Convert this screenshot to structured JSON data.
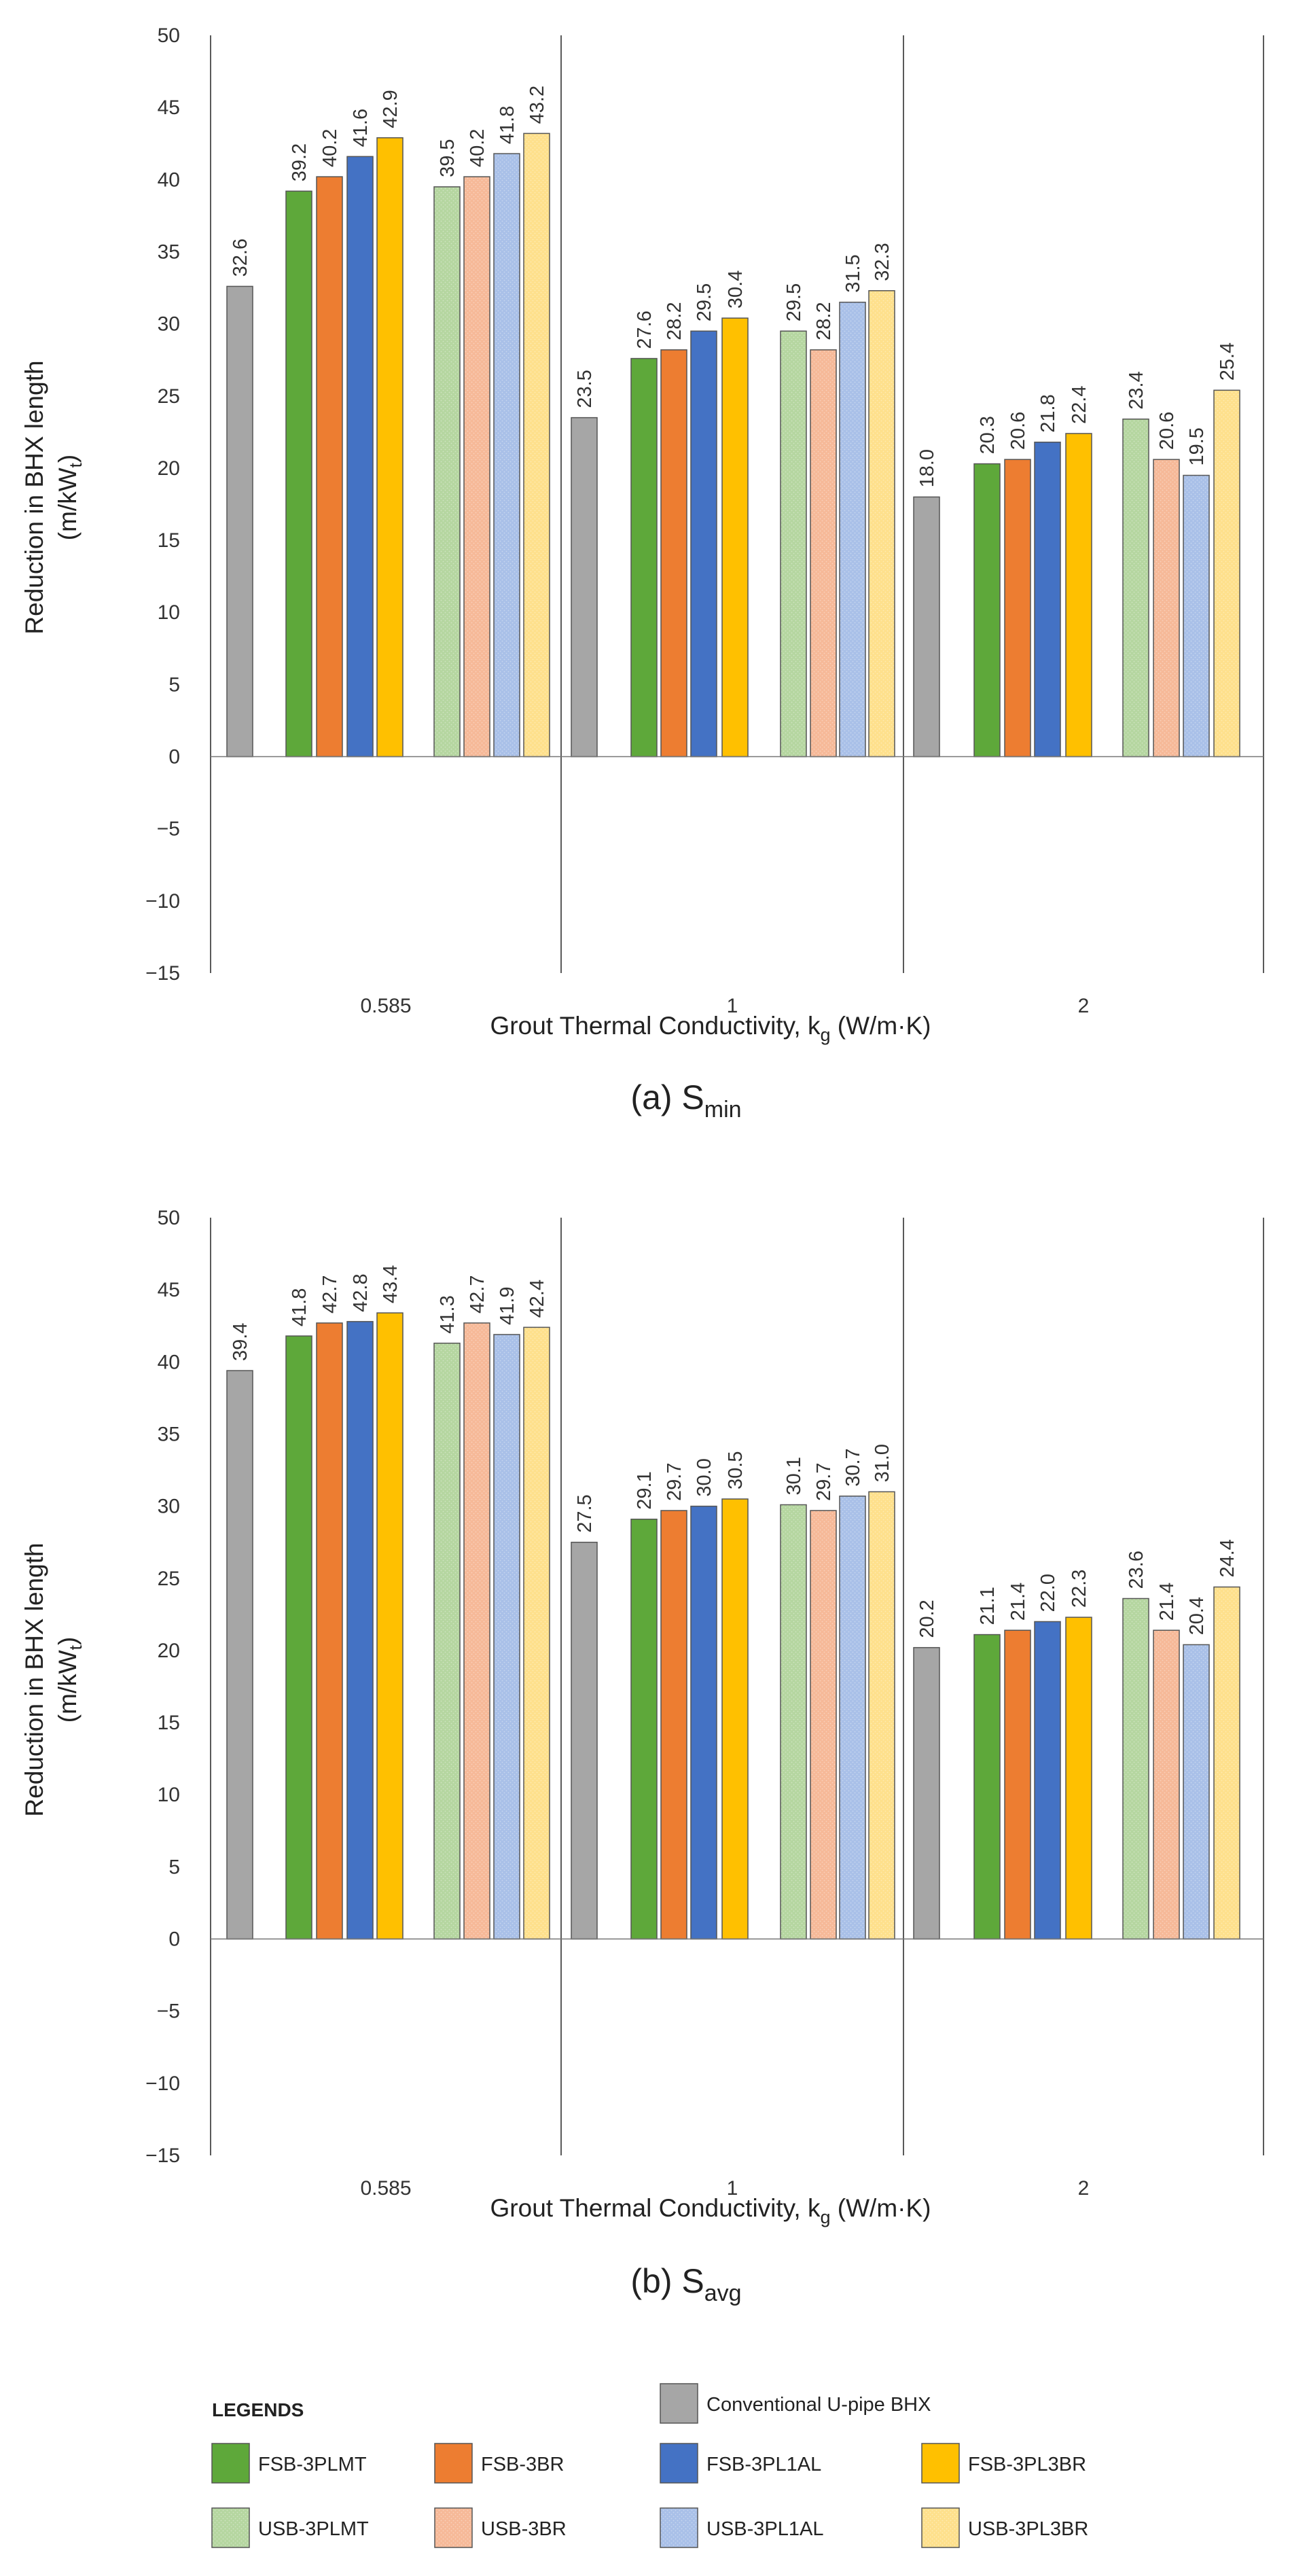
{
  "chart_data": [
    {
      "type": "bar",
      "caption_main": "(a) S",
      "caption_sub": "min",
      "ylabel_line1": "Reduction in BHX length",
      "ylabel_line2_main": "(m/kW",
      "ylabel_line2_sub": "t",
      "ylabel_line2_end": ")",
      "xlabel_main": "Grout Thermal Conductivity,  k",
      "xlabel_sub": "g",
      "xlabel_end": " (W/m·K)",
      "ylim": [
        -15,
        50
      ],
      "yticks": [
        "−15",
        "−10",
        "−5",
        "0",
        "5",
        "10",
        "15",
        "20",
        "25",
        "30",
        "35",
        "40",
        "45",
        "50"
      ],
      "categories": [
        "0.585",
        "1",
        "2"
      ],
      "series": [
        {
          "name": "Conventional U-pipe BHX",
          "values": [
            32.6,
            23.5,
            18.0
          ],
          "labels": [
            "32.6",
            "23.5",
            "18.0"
          ]
        },
        {
          "name": "FSB-3PLMT",
          "values": [
            39.2,
            27.6,
            20.3
          ],
          "labels": [
            "39.2",
            "27.6",
            "20.3"
          ]
        },
        {
          "name": "FSB-3BR",
          "values": [
            40.2,
            28.2,
            20.6
          ],
          "labels": [
            "40.2",
            "28.2",
            "20.6"
          ]
        },
        {
          "name": "FSB-3PL1AL",
          "values": [
            41.6,
            29.5,
            21.8
          ],
          "labels": [
            "41.6",
            "29.5",
            "21.8"
          ]
        },
        {
          "name": "FSB-3PL3BR",
          "values": [
            42.9,
            30.4,
            22.4
          ],
          "labels": [
            "42.9",
            "30.4",
            "22.4"
          ]
        },
        {
          "name": "USB-3PLMT",
          "values": [
            39.5,
            29.5,
            23.4
          ],
          "labels": [
            "39.5",
            "29.5",
            "23.4"
          ]
        },
        {
          "name": "USB-3BR",
          "values": [
            40.2,
            28.2,
            20.6
          ],
          "labels": [
            "40.2",
            "28.2",
            "20.6"
          ]
        },
        {
          "name": "USB-3PL1AL",
          "values": [
            41.8,
            31.5,
            19.5
          ],
          "labels": [
            "41.8",
            "31.5",
            "19.5"
          ]
        },
        {
          "name": "USB-3PL3BR",
          "values": [
            43.2,
            32.3,
            25.4
          ],
          "labels": [
            "43.2",
            "32.3",
            "25.4"
          ]
        }
      ],
      "grid": false
    },
    {
      "type": "bar",
      "caption_main": "(b) S",
      "caption_sub": "avg",
      "ylabel_line1": "Reduction in BHX length",
      "ylabel_line2_main": "(m/kW",
      "ylabel_line2_sub": "t",
      "ylabel_line2_end": ")",
      "xlabel_main": "Grout Thermal Conductivity,  k",
      "xlabel_sub": "g",
      "xlabel_end": " (W/m·K)",
      "ylim": [
        -15,
        50
      ],
      "yticks": [
        "−15",
        "−10",
        "−5",
        "0",
        "5",
        "10",
        "15",
        "20",
        "25",
        "30",
        "35",
        "40",
        "45",
        "50"
      ],
      "categories": [
        "0.585",
        "1",
        "2"
      ],
      "series": [
        {
          "name": "Conventional U-pipe BHX",
          "values": [
            39.4,
            27.5,
            20.2
          ],
          "labels": [
            "39.4",
            "27.5",
            "20.2"
          ]
        },
        {
          "name": "FSB-3PLMT",
          "values": [
            41.8,
            29.1,
            21.1
          ],
          "labels": [
            "41.8",
            "29.1",
            "21.1"
          ]
        },
        {
          "name": "FSB-3BR",
          "values": [
            42.7,
            29.7,
            21.4
          ],
          "labels": [
            "42.7",
            "29.7",
            "21.4"
          ]
        },
        {
          "name": "FSB-3PL1AL",
          "values": [
            42.8,
            30.0,
            22.0
          ],
          "labels": [
            "42.8",
            "30.0",
            "22.0"
          ]
        },
        {
          "name": "FSB-3PL3BR",
          "values": [
            43.4,
            30.5,
            22.3
          ],
          "labels": [
            "43.4",
            "30.5",
            "22.3"
          ]
        },
        {
          "name": "USB-3PLMT",
          "values": [
            41.3,
            30.1,
            23.6
          ],
          "labels": [
            "41.3",
            "30.1",
            "23.6"
          ]
        },
        {
          "name": "USB-3BR",
          "values": [
            42.7,
            29.7,
            21.4
          ],
          "labels": [
            "42.7",
            "29.7",
            "21.4"
          ]
        },
        {
          "name": "USB-3PL1AL",
          "values": [
            41.9,
            30.7,
            20.4
          ],
          "labels": [
            "41.9",
            "30.7",
            "20.4"
          ]
        },
        {
          "name": "USB-3PL3BR",
          "values": [
            42.4,
            31.0,
            24.4
          ],
          "labels": [
            "42.4",
            "31.0",
            "24.4"
          ]
        }
      ],
      "grid": false
    }
  ],
  "series_colors": [
    "#a6a6a6",
    "#5ea83a",
    "#ed7d31",
    "#4472c4",
    "#ffc000",
    "#b5d6a0",
    "#f6b998",
    "#a9c0e8",
    "#fee08c"
  ],
  "legend": {
    "title": "LEGENDS",
    "conventional": "Conventional U-pipe BHX",
    "rows": [
      [
        "FSB-3PLMT",
        "FSB-3BR",
        "FSB-3PL1AL",
        "FSB-3PL3BR"
      ],
      [
        "USB-3PLMT",
        "USB-3BR",
        "USB-3PL1AL",
        "USB-3PL3BR"
      ]
    ]
  }
}
